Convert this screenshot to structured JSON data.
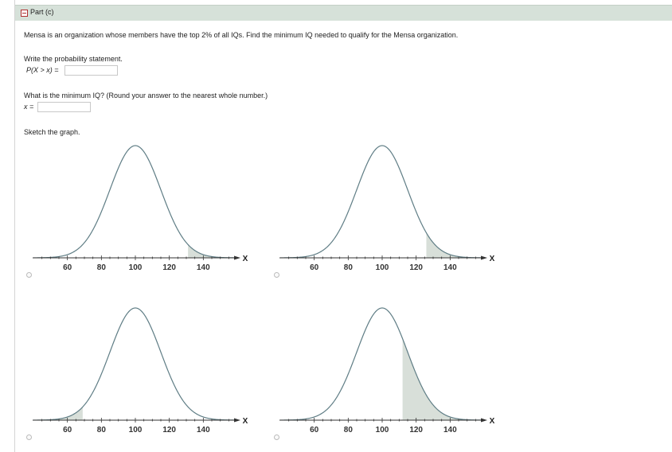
{
  "part": {
    "title": "Part (c)"
  },
  "question": {
    "text": "Mensa is an organization whose members have the top 2% of all IQs. Find the minimum IQ needed to qualify for the Mensa organization.",
    "prob_prompt": "Write the probability statement.",
    "prob_label": "P(X > x) =",
    "prob_value": "",
    "iq_prompt": "What is the minimum IQ? (Round your answer to the nearest whole number.)",
    "iq_label": "x =",
    "iq_value": "",
    "sketch_prompt": "Sketch the graph."
  },
  "chart_data": [
    {
      "type": "area",
      "curve": "normal",
      "mean": 100,
      "sd": 15,
      "x_ticks": [
        "60",
        "80",
        "100",
        "120",
        "140"
      ],
      "xlabel": "X",
      "shaded_range": [
        131,
        160
      ],
      "selected": false
    },
    {
      "type": "area",
      "curve": "normal",
      "mean": 100,
      "sd": 15,
      "x_ticks": [
        "60",
        "80",
        "100",
        "120",
        "140"
      ],
      "xlabel": "X",
      "shaded_range": [
        126,
        160
      ],
      "selected": false
    },
    {
      "type": "area",
      "curve": "normal",
      "mean": 100,
      "sd": 15,
      "x_ticks": [
        "60",
        "80",
        "100",
        "120",
        "140"
      ],
      "xlabel": "X",
      "shaded_range": [
        40,
        69
      ],
      "selected": false
    },
    {
      "type": "area",
      "curve": "normal",
      "mean": 100,
      "sd": 15,
      "x_ticks": [
        "60",
        "80",
        "100",
        "120",
        "140"
      ],
      "xlabel": "X",
      "shaded_range": [
        112,
        160
      ],
      "selected": false
    }
  ],
  "colors": {
    "curve": "#5f7d85",
    "shade": "#d8dfd9",
    "axis": "#333333",
    "header": "#d6e1d9"
  }
}
